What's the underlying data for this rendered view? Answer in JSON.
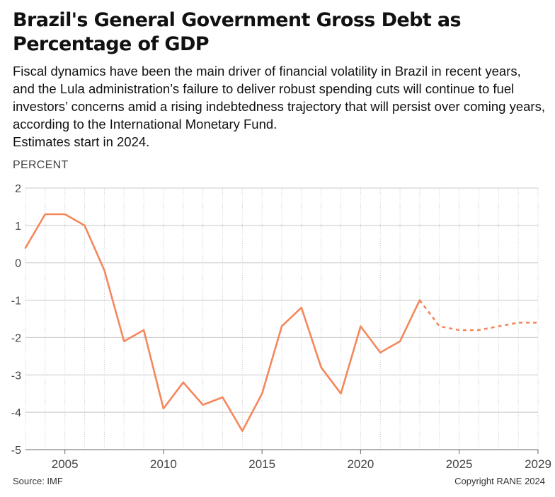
{
  "title": "Brazil's General Government Gross Debt as Percentage of GDP",
  "subtitle": "Fiscal dynamics have been the main driver of financial volatility in Brazil in recent years, and the Lula administration’s failure to deliver robust spending cuts will continue to fuel investors’ concerns amid a rising indebtedness trajectory that will persist over coming years, according to the International Monetary Fund.",
  "note": "Estimates start in 2024.",
  "unit_label": "PERCENT",
  "source": "Source: IMF",
  "copyright": "Copyright RANE 2024",
  "colors": {
    "series": "#f4875c",
    "grid": "#c8c8c8",
    "axis": "#666666"
  },
  "chart_data": {
    "type": "line",
    "title": "Brazil's General Government Gross Debt as Percentage of GDP",
    "ylabel": "PERCENT",
    "xlabel": "",
    "ylim": [
      -5,
      2
    ],
    "xlim": [
      2003,
      2029
    ],
    "x_tick_labels": [
      "2005",
      "2010",
      "2015",
      "2020",
      "2025",
      "2029"
    ],
    "y_tick_labels": [
      "2",
      "1",
      "0",
      "-1",
      "-2",
      "-3",
      "-4",
      "-5"
    ],
    "grid": "vertical dotted per year, horizontal at each integer",
    "x": [
      2003,
      2004,
      2005,
      2006,
      2007,
      2008,
      2009,
      2010,
      2011,
      2012,
      2013,
      2014,
      2015,
      2016,
      2017,
      2018,
      2019,
      2020,
      2021,
      2022,
      2023,
      2024,
      2025,
      2026,
      2027,
      2028,
      2029
    ],
    "series": [
      {
        "values": [
          0.4,
          1.3,
          1.3,
          1.0,
          -0.2,
          -2.1,
          -1.8,
          -3.9,
          -3.2,
          -3.8,
          -3.6,
          -4.5,
          -3.5,
          -1.7,
          -1.2,
          -2.8,
          -3.5,
          -1.7,
          -2.4,
          -2.1,
          -1.0,
          -1.7,
          -1.8,
          -1.8,
          -1.7,
          -1.6,
          -1.6
        ],
        "estimate_start": 2023
      }
    ]
  }
}
